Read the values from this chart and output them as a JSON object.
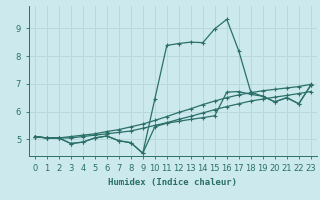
{
  "xlabel": "Humidex (Indice chaleur)",
  "xlim": [
    -0.5,
    23.5
  ],
  "ylim": [
    4.4,
    9.8
  ],
  "xticks": [
    0,
    1,
    2,
    3,
    4,
    5,
    6,
    7,
    8,
    9,
    10,
    11,
    12,
    13,
    14,
    15,
    16,
    17,
    18,
    19,
    20,
    21,
    22,
    23
  ],
  "yticks": [
    5,
    6,
    7,
    8,
    9
  ],
  "bg_color": "#cce9ee",
  "grid_color": "#b8d8de",
  "line_color": "#2a7068",
  "curves": [
    {
      "x": [
        0,
        1,
        2,
        3,
        4,
        5,
        6,
        7,
        8,
        9,
        10,
        11,
        12,
        13,
        14,
        15,
        16,
        17,
        18,
        19,
        20,
        21,
        22,
        23
      ],
      "y": [
        5.1,
        5.05,
        5.05,
        5.05,
        5.1,
        5.15,
        5.2,
        5.25,
        5.3,
        5.4,
        5.5,
        5.6,
        5.72,
        5.83,
        5.95,
        6.07,
        6.18,
        6.28,
        6.38,
        6.45,
        6.52,
        6.58,
        6.65,
        6.72
      ]
    },
    {
      "x": [
        0,
        1,
        2,
        3,
        4,
        5,
        6,
        7,
        8,
        9,
        10,
        11,
        12,
        13,
        14,
        15,
        16,
        17,
        18,
        19,
        20,
        21,
        22,
        23
      ],
      "y": [
        5.1,
        5.05,
        5.05,
        5.1,
        5.15,
        5.2,
        5.28,
        5.35,
        5.45,
        5.55,
        5.68,
        5.82,
        5.97,
        6.1,
        6.25,
        6.38,
        6.5,
        6.6,
        6.68,
        6.75,
        6.8,
        6.85,
        6.9,
        6.98
      ]
    },
    {
      "x": [
        0,
        1,
        2,
        3,
        4,
        5,
        6,
        7,
        8,
        9,
        10,
        11,
        12,
        13,
        14,
        15,
        16,
        17,
        18,
        19,
        20,
        21,
        22,
        23
      ],
      "y": [
        5.1,
        5.05,
        5.05,
        4.85,
        4.9,
        5.05,
        5.12,
        4.95,
        4.88,
        4.5,
        5.45,
        5.58,
        5.65,
        5.72,
        5.78,
        5.85,
        6.7,
        6.72,
        6.62,
        6.55,
        6.35,
        6.5,
        6.28,
        6.95
      ]
    },
    {
      "x": [
        0,
        1,
        2,
        3,
        4,
        5,
        6,
        7,
        8,
        9,
        10,
        11,
        12,
        13,
        14,
        15,
        16,
        17,
        18,
        19,
        20,
        21,
        22,
        23
      ],
      "y": [
        5.1,
        5.05,
        5.05,
        4.85,
        4.9,
        5.05,
        5.12,
        4.95,
        4.88,
        4.5,
        6.45,
        8.38,
        8.45,
        8.5,
        8.48,
        8.98,
        9.32,
        8.18,
        6.7,
        6.55,
        6.35,
        6.5,
        6.28,
        6.95
      ]
    }
  ]
}
